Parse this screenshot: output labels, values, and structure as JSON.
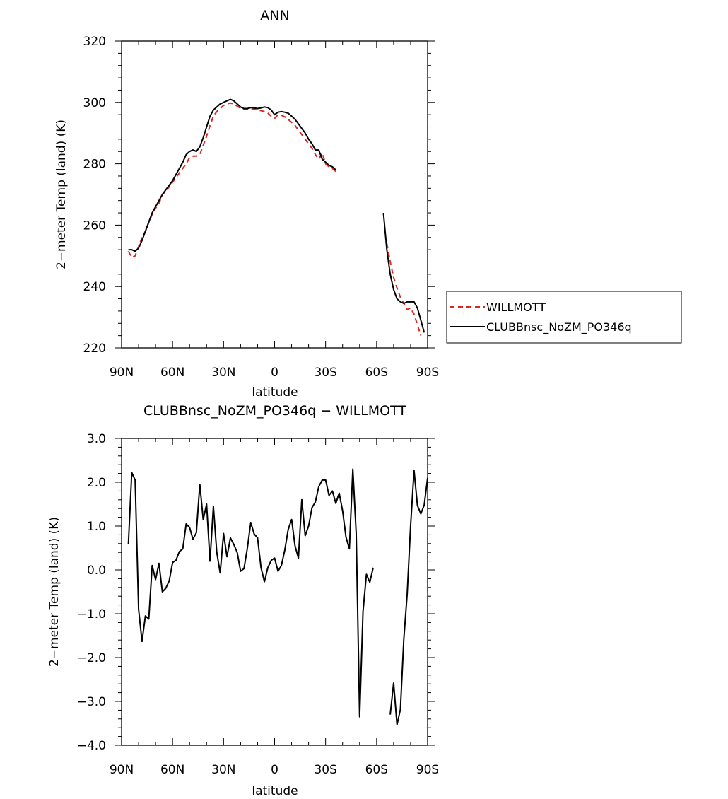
{
  "chart_data": [
    {
      "type": "line",
      "title": "ANN",
      "xlabel": "latitude",
      "ylabel": "2−meter Temp (land) (K)",
      "xlim": [
        -90,
        90
      ],
      "ylim": [
        220,
        320
      ],
      "x_tick_values": [
        -90,
        -60,
        -30,
        0,
        30,
        60,
        90
      ],
      "x_tick_labels": [
        "90N",
        "60N",
        "30N",
        "0",
        "30S",
        "60S",
        "90S"
      ],
      "y_tick_values": [
        220,
        240,
        260,
        280,
        300,
        320
      ],
      "y_tick_labels": [
        "220",
        "240",
        "260",
        "280",
        "300",
        "320"
      ],
      "legend": "outside-right",
      "series": [
        {
          "name": "WILLMOTT",
          "color": "#e0251f",
          "dash": "dashed",
          "segments": [
            [
              [
                -86,
                251.5
              ],
              [
                -84,
                249.5
              ],
              [
                -82,
                250
              ],
              [
                -80,
                253
              ],
              [
                -78,
                256
              ],
              [
                -76,
                258
              ],
              [
                -74,
                261
              ],
              [
                -72,
                263.5
              ],
              [
                -70,
                265.5
              ],
              [
                -68,
                267
              ],
              [
                -66,
                270
              ],
              [
                -64,
                271
              ],
              [
                -62,
                272.5
              ],
              [
                -60,
                274
              ],
              [
                -58,
                275.5
              ],
              [
                -56,
                277
              ],
              [
                -54,
                278.5
              ],
              [
                -52,
                280
              ],
              [
                -50,
                282
              ],
              [
                -48,
                282.5
              ],
              [
                -46,
                282.5
              ],
              [
                -44,
                283
              ],
              [
                -42,
                286
              ],
              [
                -40,
                289
              ],
              [
                -38,
                292.5
              ],
              [
                -36,
                295.5
              ],
              [
                -34,
                297
              ],
              [
                -32,
                298
              ],
              [
                -30,
                299
              ],
              [
                -28,
                299.5
              ],
              [
                -26,
                299.8
              ],
              [
                -24,
                299.5
              ],
              [
                -22,
                298.8
              ],
              [
                -20,
                298
              ],
              [
                -18,
                297.8
              ],
              [
                -16,
                297.8
              ],
              [
                -14,
                298
              ],
              [
                -12,
                297.8
              ],
              [
                -10,
                297.5
              ],
              [
                -8,
                297.3
              ],
              [
                -6,
                297
              ],
              [
                -4,
                296.5
              ],
              [
                -2,
                295.5
              ],
              [
                0,
                294.8
              ],
              [
                2,
                296
              ],
              [
                4,
                295.8
              ],
              [
                6,
                295.3
              ],
              [
                8,
                294.5
              ],
              [
                10,
                293.5
              ],
              [
                12,
                292.5
              ],
              [
                14,
                291
              ],
              [
                16,
                289.5
              ],
              [
                18,
                288
              ],
              [
                20,
                286.5
              ],
              [
                22,
                285
              ],
              [
                24,
                283
              ],
              [
                26,
                281.5
              ],
              [
                28,
                283.5
              ],
              [
                30,
                280
              ],
              [
                32,
                279
              ],
              [
                34,
                278.5
              ],
              [
                36,
                277.5
              ]
            ],
            [
              [
                66,
                254
              ],
              [
                68,
                248
              ],
              [
                70,
                243
              ],
              [
                72,
                239.5
              ],
              [
                74,
                236.5
              ],
              [
                76,
                234.5
              ],
              [
                78,
                232.5
              ],
              [
                80,
                233
              ],
              [
                82,
                231
              ],
              [
                84,
                227.5
              ],
              [
                86,
                224
              ]
            ]
          ]
        },
        {
          "name": "CLUBBnsc_NoZM_PO346q",
          "color": "#000000",
          "dash": "solid",
          "segments": [
            [
              [
                -86,
                252
              ],
              [
                -84,
                252
              ],
              [
                -82,
                251.5
              ],
              [
                -80,
                252.5
              ],
              [
                -78,
                255
              ],
              [
                -76,
                258
              ],
              [
                -74,
                261
              ],
              [
                -72,
                264
              ],
              [
                -70,
                266
              ],
              [
                -68,
                268
              ],
              [
                -66,
                270
              ],
              [
                -64,
                271.5
              ],
              [
                -62,
                273
              ],
              [
                -60,
                274.5
              ],
              [
                -58,
                276.5
              ],
              [
                -56,
                278.5
              ],
              [
                -54,
                280.5
              ],
              [
                -52,
                283
              ],
              [
                -50,
                284
              ],
              [
                -48,
                284.5
              ],
              [
                -46,
                284
              ],
              [
                -44,
                285.5
              ],
              [
                -42,
                288.5
              ],
              [
                -40,
                292
              ],
              [
                -38,
                295.5
              ],
              [
                -36,
                297.5
              ],
              [
                -34,
                298.5
              ],
              [
                -32,
                299.5
              ],
              [
                -30,
                300
              ],
              [
                -28,
                300.5
              ],
              [
                -26,
                301
              ],
              [
                -24,
                300.5
              ],
              [
                -22,
                299.5
              ],
              [
                -20,
                298.5
              ],
              [
                -18,
                298
              ],
              [
                -16,
                298
              ],
              [
                -14,
                298.3
              ],
              [
                -12,
                298.2
              ],
              [
                -10,
                298
              ],
              [
                -8,
                298.2
              ],
              [
                -6,
                298.5
              ],
              [
                -4,
                298.3
              ],
              [
                -2,
                297.5
              ],
              [
                0,
                296
              ],
              [
                2,
                296.8
              ],
              [
                4,
                297
              ],
              [
                6,
                296.8
              ],
              [
                8,
                296.5
              ],
              [
                10,
                295.5
              ],
              [
                12,
                294.5
              ],
              [
                14,
                293
              ],
              [
                16,
                291.5
              ],
              [
                18,
                290
              ],
              [
                20,
                288
              ],
              [
                22,
                286.5
              ],
              [
                24,
                284.5
              ],
              [
                26,
                284.5
              ],
              [
                28,
                281.5
              ],
              [
                30,
                280.5
              ],
              [
                32,
                279.5
              ],
              [
                34,
                279
              ],
              [
                36,
                278
              ]
            ],
            [
              [
                64,
                264
              ],
              [
                66,
                252
              ],
              [
                68,
                244
              ],
              [
                70,
                239
              ],
              [
                72,
                236
              ],
              [
                74,
                235
              ],
              [
                76,
                234.5
              ],
              [
                78,
                235
              ],
              [
                80,
                235
              ],
              [
                82,
                235
              ],
              [
                84,
                233
              ],
              [
                86,
                229
              ],
              [
                88,
                225
              ]
            ]
          ]
        }
      ]
    },
    {
      "type": "line",
      "title": "CLUBBnsc_NoZM_PO346q − WILLMOTT",
      "xlabel": "latitude",
      "ylabel": "2−meter Temp (land) (K)",
      "xlim": [
        -90,
        90
      ],
      "ylim": [
        -4,
        3
      ],
      "x_tick_values": [
        -90,
        -60,
        -30,
        0,
        30,
        60,
        90
      ],
      "x_tick_labels": [
        "90N",
        "60N",
        "30N",
        "0",
        "30S",
        "60S",
        "90S"
      ],
      "y_tick_values": [
        -4,
        -3,
        -2,
        -1,
        0,
        1,
        2,
        3
      ],
      "y_tick_labels": [
        "−4.0",
        "−3.0",
        "−2.0",
        "−1.0",
        "0.0",
        "1.0",
        "2.0",
        "3.0"
      ],
      "series": [
        {
          "color": "#000000",
          "dash": "solid",
          "segments": [
            [
              [
                -86,
                0.58
              ],
              [
                -84,
                2.22
              ],
              [
                -82,
                2.05
              ],
              [
                -80,
                -0.9
              ],
              [
                -78,
                -1.63
              ],
              [
                -76,
                -1.05
              ],
              [
                -74,
                -1.12
              ],
              [
                -72,
                0.1
              ],
              [
                -70,
                -0.22
              ],
              [
                -68,
                0.15
              ],
              [
                -66,
                -0.5
              ],
              [
                -64,
                -0.42
              ],
              [
                -62,
                -0.25
              ],
              [
                -60,
                0.17
              ],
              [
                -58,
                0.22
              ],
              [
                -56,
                0.42
              ],
              [
                -54,
                0.48
              ],
              [
                -52,
                1.05
              ],
              [
                -50,
                0.97
              ],
              [
                -48,
                0.7
              ],
              [
                -46,
                0.85
              ],
              [
                -44,
                1.95
              ],
              [
                -42,
                1.15
              ],
              [
                -40,
                1.5
              ],
              [
                -38,
                0.2
              ],
              [
                -36,
                1.45
              ],
              [
                -34,
                0.4
              ],
              [
                -32,
                -0.07
              ],
              [
                -30,
                0.83
              ],
              [
                -28,
                0.3
              ],
              [
                -26,
                0.73
              ],
              [
                -24,
                0.58
              ],
              [
                -22,
                0.4
              ],
              [
                -20,
                -0.03
              ],
              [
                -18,
                0.03
              ],
              [
                -16,
                0.5
              ],
              [
                -14,
                1.08
              ],
              [
                -12,
                0.82
              ],
              [
                -10,
                0.73
              ],
              [
                -8,
                0.05
              ],
              [
                -6,
                -0.27
              ],
              [
                -4,
                0.05
              ],
              [
                -2,
                0.22
              ],
              [
                0,
                0.27
              ],
              [
                2,
                -0.03
              ],
              [
                4,
                0.1
              ],
              [
                6,
                0.45
              ],
              [
                8,
                0.92
              ],
              [
                10,
                1.15
              ],
              [
                12,
                0.55
              ],
              [
                14,
                0.27
              ],
              [
                16,
                1.6
              ],
              [
                18,
                0.78
              ],
              [
                20,
                1.0
              ],
              [
                22,
                1.42
              ],
              [
                24,
                1.55
              ],
              [
                26,
                1.9
              ],
              [
                28,
                2.05
              ],
              [
                30,
                2.05
              ],
              [
                32,
                1.7
              ],
              [
                34,
                1.8
              ],
              [
                36,
                1.52
              ],
              [
                38,
                1.75
              ],
              [
                40,
                1.35
              ],
              [
                42,
                0.75
              ],
              [
                44,
                0.48
              ],
              [
                46,
                2.3
              ],
              [
                48,
                0.82
              ],
              [
                50,
                -3.35
              ],
              [
                52,
                -0.95
              ],
              [
                54,
                -0.1
              ],
              [
                56,
                -0.28
              ],
              [
                58,
                0.05
              ]
            ],
            [
              [
                68,
                -3.3
              ],
              [
                70,
                -2.58
              ],
              [
                72,
                -3.53
              ],
              [
                74,
                -3.18
              ],
              [
                76,
                -1.58
              ],
              [
                78,
                -0.55
              ],
              [
                80,
                1.0
              ],
              [
                82,
                2.27
              ],
              [
                84,
                1.47
              ],
              [
                86,
                1.28
              ],
              [
                88,
                1.48
              ],
              [
                90,
                2.1
              ]
            ]
          ]
        }
      ]
    }
  ]
}
